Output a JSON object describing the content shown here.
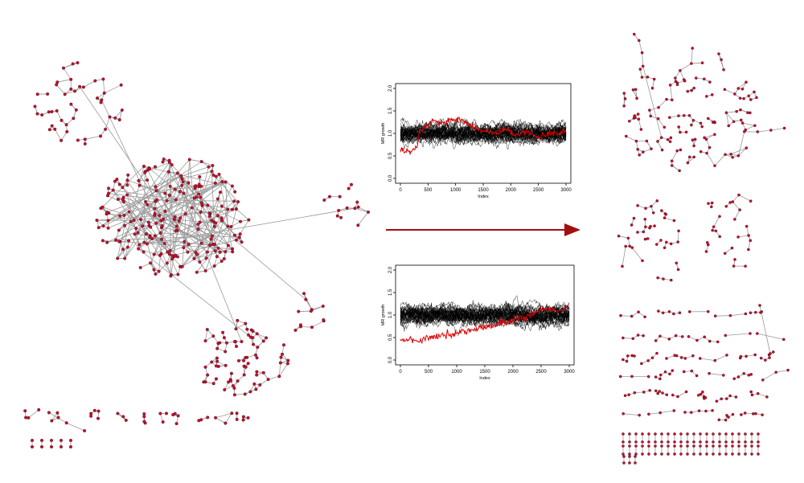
{
  "colors": {
    "node": "#c8102e",
    "edge": "#9a9a9a",
    "arrow": "#a30e0e",
    "series_background": "#000000",
    "series_highlight": "#e00000"
  },
  "arrow": {
    "direction": "left-to-right",
    "icon": "arrow-right-icon"
  },
  "networks": {
    "before": {
      "description_icon": "network-graph-icon"
    },
    "after": {
      "description_icon": "network-graph-icon"
    }
  },
  "chart_data": [
    {
      "type": "line",
      "xlabel": "Index",
      "ylabel": "MR growth",
      "xlim": [
        0,
        3000
      ],
      "ylim": [
        0,
        2.0
      ],
      "x_ticks": [
        "0",
        "500",
        "1000",
        "1500",
        "2000",
        "2500",
        "3000"
      ],
      "y_ticks": [
        "0.0",
        "0.5",
        "1.0",
        "1.5",
        "2.0"
      ],
      "background_series": {
        "count": 40,
        "mean": 1.0,
        "spread": 0.28
      },
      "highlight_series": {
        "color": "#e00000",
        "points": [
          [
            0,
            0.62
          ],
          [
            200,
            0.6
          ],
          [
            300,
            0.7
          ],
          [
            350,
            1.05
          ],
          [
            500,
            1.15
          ],
          [
            600,
            1.3
          ],
          [
            700,
            1.2
          ],
          [
            900,
            1.3
          ],
          [
            1100,
            1.3
          ],
          [
            1300,
            1.15
          ],
          [
            1500,
            1.05
          ],
          [
            1700,
            1.0
          ],
          [
            1900,
            1.1
          ],
          [
            2100,
            0.95
          ],
          [
            2300,
            1.05
          ],
          [
            2500,
            0.9
          ],
          [
            2700,
            1.0
          ],
          [
            2900,
            1.0
          ],
          [
            3000,
            1.1
          ]
        ]
      }
    },
    {
      "type": "line",
      "xlabel": "Index",
      "ylabel": "MR growth",
      "xlim": [
        0,
        3000
      ],
      "ylim": [
        0,
        2.0
      ],
      "x_ticks": [
        "0",
        "500",
        "1000",
        "1500",
        "2000",
        "2500",
        "3000"
      ],
      "y_ticks": [
        "0.0",
        "0.5",
        "1.0",
        "1.5",
        "2.0"
      ],
      "background_series": {
        "count": 40,
        "mean": 1.0,
        "spread": 0.28
      },
      "highlight_series": {
        "color": "#e00000",
        "points": [
          [
            0,
            0.45
          ],
          [
            300,
            0.42
          ],
          [
            500,
            0.5
          ],
          [
            800,
            0.55
          ],
          [
            1000,
            0.6
          ],
          [
            1200,
            0.65
          ],
          [
            1400,
            0.7
          ],
          [
            1600,
            0.75
          ],
          [
            1800,
            0.82
          ],
          [
            2000,
            0.88
          ],
          [
            2200,
            0.95
          ],
          [
            2400,
            1.05
          ],
          [
            2600,
            1.15
          ],
          [
            2800,
            1.1
          ],
          [
            3000,
            1.2
          ]
        ]
      }
    }
  ]
}
